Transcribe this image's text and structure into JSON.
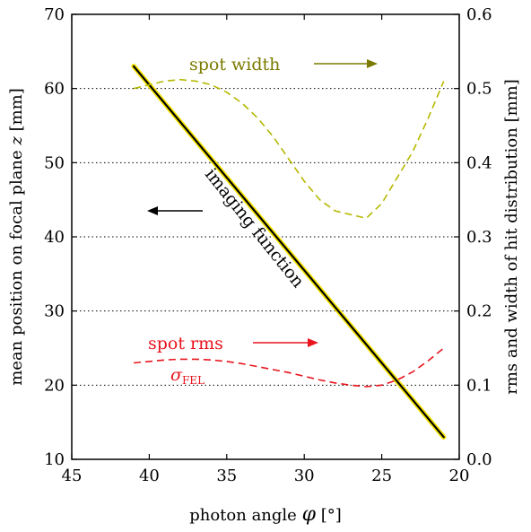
{
  "chart_data": {
    "type": "line",
    "xlabel": "photon angle φ [°]",
    "ylabel_left": "mean position on focal plane z [mm]",
    "ylabel_right": "rms and width of hit distribution [mm]",
    "xlim": [
      45,
      20
    ],
    "ylim_left": [
      10,
      70
    ],
    "ylim_right": [
      0.0,
      0.6
    ],
    "x_ticks": [
      45,
      40,
      35,
      30,
      25,
      20
    ],
    "y_ticks_left": [
      10,
      20,
      30,
      40,
      50,
      60,
      70
    ],
    "y_ticks_right": [
      "0.0",
      "0.1",
      "0.2",
      "0.3",
      "0.4",
      "0.5",
      "0.6"
    ],
    "grid": "horizontal dotted at 20, 30, 40, 50, 60",
    "series": [
      {
        "name": "imaging function",
        "axis": "left",
        "color": "#000000",
        "highlight": "#f5e400",
        "style": "solid",
        "x": [
          41,
          21
        ],
        "y": [
          63,
          13
        ]
      },
      {
        "name": "spot width",
        "axis": "right",
        "color": "#b5b800",
        "style": "dashed",
        "x": [
          41,
          40,
          39,
          38,
          37,
          36,
          35,
          34,
          33,
          32,
          31,
          30,
          29,
          28,
          27,
          26,
          25,
          24,
          23,
          22,
          21
        ],
        "y": [
          0.5,
          0.505,
          0.51,
          0.512,
          0.51,
          0.505,
          0.495,
          0.48,
          0.46,
          0.435,
          0.405,
          0.375,
          0.35,
          0.335,
          0.33,
          0.325,
          0.345,
          0.38,
          0.415,
          0.46,
          0.51
        ]
      },
      {
        "name": "spot rms",
        "axis": "right",
        "color": "#e8141e",
        "style": "dashed",
        "x": [
          41,
          40,
          39,
          38,
          37,
          36,
          35,
          34,
          33,
          32,
          31,
          30,
          29,
          28,
          27,
          26,
          25,
          24,
          23,
          22,
          21
        ],
        "y": [
          0.13,
          0.132,
          0.134,
          0.135,
          0.135,
          0.134,
          0.132,
          0.129,
          0.125,
          0.121,
          0.117,
          0.112,
          0.107,
          0.103,
          0.1,
          0.098,
          0.1,
          0.107,
          0.118,
          0.133,
          0.15
        ]
      }
    ],
    "annotations": {
      "imaging_function": "imaging function",
      "spot_width": "spot width",
      "spot_rms": "spot rms",
      "sigma_main": "σ",
      "sigma_sub": "FEL"
    }
  }
}
